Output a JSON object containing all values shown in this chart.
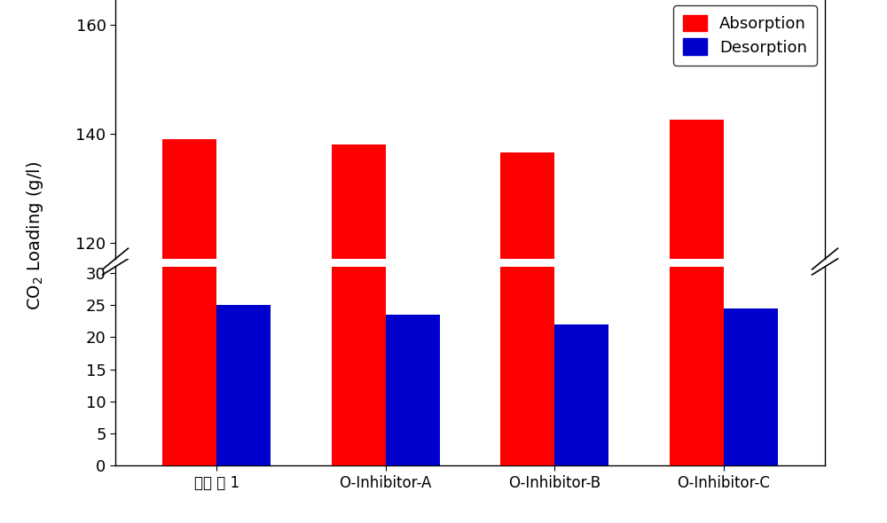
{
  "categories": [
    "흥수 제 1",
    "O-Inhibitor-A",
    "O-Inhibitor-B",
    "O-Inhibitor-C"
  ],
  "absorption": [
    139.0,
    138.0,
    136.5,
    142.5
  ],
  "desorption": [
    25.0,
    23.5,
    22.0,
    24.5
  ],
  "absorption_color": "#FF0000",
  "desorption_color": "#0000CD",
  "ylabel": "CO$_2$ Loading (g/l)",
  "legend_absorption": "Absorption",
  "legend_desorption": "Desorption",
  "lower_ylim": [
    0,
    31
  ],
  "upper_ylim": [
    117,
    165
  ],
  "lower_yticks": [
    0,
    5,
    10,
    15,
    20,
    25,
    30
  ],
  "upper_yticks": [
    120,
    140,
    160
  ],
  "bar_width": 0.32,
  "background_color": "#FFFFFF",
  "axis_color": "#000000",
  "text_color": "#000000",
  "legend_fontsize": 13,
  "ylabel_fontsize": 14,
  "tick_fontsize": 13,
  "xlabel_fontsize": 12
}
